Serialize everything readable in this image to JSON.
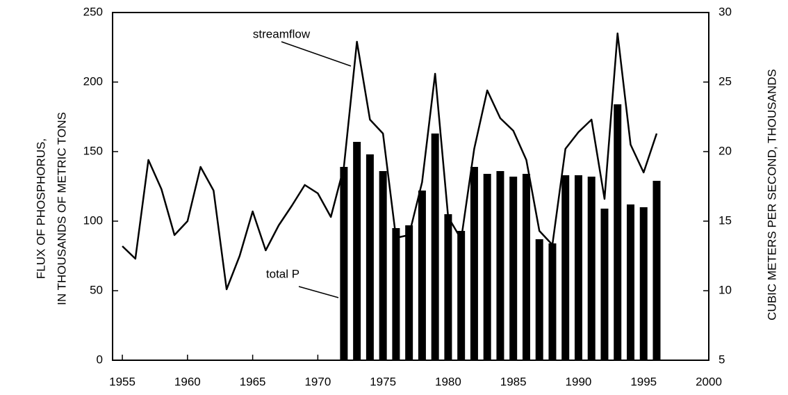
{
  "chart_data": {
    "type": "bar-line",
    "ylabel": [
      "FLUX OF PHOSPHORUS,",
      "IN THOUSANDS OF METRIC TONS"
    ],
    "y2label": "CUBIC METERS PER SECOND, THOUSANDS",
    "xlim": [
      1954.25,
      2000
    ],
    "xticks": [
      1955,
      1960,
      1965,
      1970,
      1975,
      1980,
      1985,
      1990,
      1995,
      2000
    ],
    "ylim": [
      0,
      250
    ],
    "yticks": [
      0,
      50,
      100,
      150,
      200,
      250
    ],
    "y2lim": [
      5,
      30
    ],
    "y2ticks": [
      5,
      10,
      15,
      20,
      25,
      30
    ],
    "series": [
      {
        "name": "total P",
        "type": "bar",
        "color": "#000000",
        "x": [
          1972,
          1973,
          1974,
          1975,
          1976,
          1977,
          1978,
          1979,
          1980,
          1981,
          1982,
          1983,
          1984,
          1985,
          1986,
          1987,
          1988,
          1989,
          1990,
          1991,
          1992,
          1993,
          1994,
          1995,
          1996
        ],
        "values": [
          139,
          157,
          148,
          136,
          95,
          97,
          122,
          163,
          105,
          93,
          139,
          134,
          136,
          132,
          134,
          87,
          84,
          133,
          133,
          132,
          109,
          184,
          112,
          110,
          129
        ]
      },
      {
        "name": "streamflow",
        "type": "line",
        "axis": "y2",
        "color": "#000000",
        "x": [
          1955,
          1956,
          1957,
          1958,
          1959,
          1960,
          1961,
          1962,
          1963,
          1964,
          1965,
          1966,
          1967,
          1968,
          1969,
          1970,
          1971,
          1972,
          1973,
          1974,
          1975,
          1976,
          1977,
          1978,
          1979,
          1980,
          1981,
          1982,
          1983,
          1984,
          1985,
          1986,
          1987,
          1988,
          1989,
          1990,
          1991,
          1992,
          1993,
          1994,
          1995,
          1996
        ],
        "values": [
          13.2,
          12.3,
          19.4,
          17.3,
          14.0,
          15.0,
          18.9,
          17.2,
          10.1,
          12.5,
          15.7,
          12.9,
          14.7,
          16.1,
          17.6,
          17.0,
          15.3,
          18.9,
          27.9,
          22.3,
          21.3,
          13.8,
          14.0,
          17.8,
          25.6,
          15.3,
          13.7,
          20.2,
          24.4,
          22.4,
          21.5,
          19.4,
          14.3,
          13.3,
          20.2,
          21.4,
          22.3,
          16.6,
          28.5,
          20.5,
          18.5,
          21.3
        ]
      }
    ]
  }
}
